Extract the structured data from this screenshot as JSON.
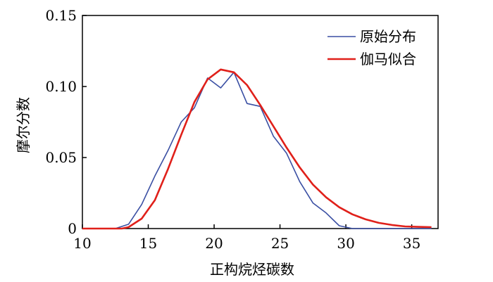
{
  "chart_data": {
    "type": "line",
    "xlabel": "正构烷烃碳数",
    "ylabel": "摩尔分数",
    "xlim": [
      10,
      37
    ],
    "ylim": [
      0,
      0.15
    ],
    "x_ticks": [
      "10",
      "15",
      "20",
      "25",
      "30",
      "35"
    ],
    "y_ticks": [
      "0",
      "0.05",
      "0.10",
      "0.15"
    ],
    "grid": false,
    "legend_position": "top-right",
    "series": [
      {
        "name": "原始分布",
        "color": "#3a4fa3",
        "x": [
          10,
          11,
          12,
          12.5,
          13.5,
          14.5,
          15.5,
          16.5,
          17.5,
          18.5,
          19.5,
          20.5,
          21.5,
          22.5,
          23.5,
          24.5,
          25.5,
          26.5,
          27.5,
          28.5,
          29.5,
          30.5,
          36.5
        ],
        "y": [
          0,
          0,
          0,
          0,
          0.003,
          0.017,
          0.037,
          0.055,
          0.075,
          0.085,
          0.106,
          0.099,
          0.11,
          0.088,
          0.086,
          0.065,
          0.053,
          0.033,
          0.018,
          0.011,
          0.002,
          0,
          0
        ]
      },
      {
        "name": "伽马似合",
        "color": "#e0201a",
        "x": [
          10,
          11,
          12,
          13,
          13.5,
          14.5,
          15.5,
          16.5,
          17.5,
          18.5,
          19.5,
          20.5,
          21.5,
          22.5,
          23.5,
          24.5,
          25.5,
          26.5,
          27.5,
          28.5,
          29.5,
          30.5,
          31.5,
          32.5,
          33.5,
          34.5,
          35.5,
          36.5
        ],
        "y": [
          0,
          0,
          0,
          0,
          0.001,
          0.007,
          0.02,
          0.042,
          0.066,
          0.089,
          0.105,
          0.112,
          0.11,
          0.101,
          0.087,
          0.072,
          0.057,
          0.043,
          0.031,
          0.022,
          0.015,
          0.01,
          0.0065,
          0.004,
          0.0025,
          0.0015,
          0.0012,
          0.001
        ]
      }
    ]
  }
}
